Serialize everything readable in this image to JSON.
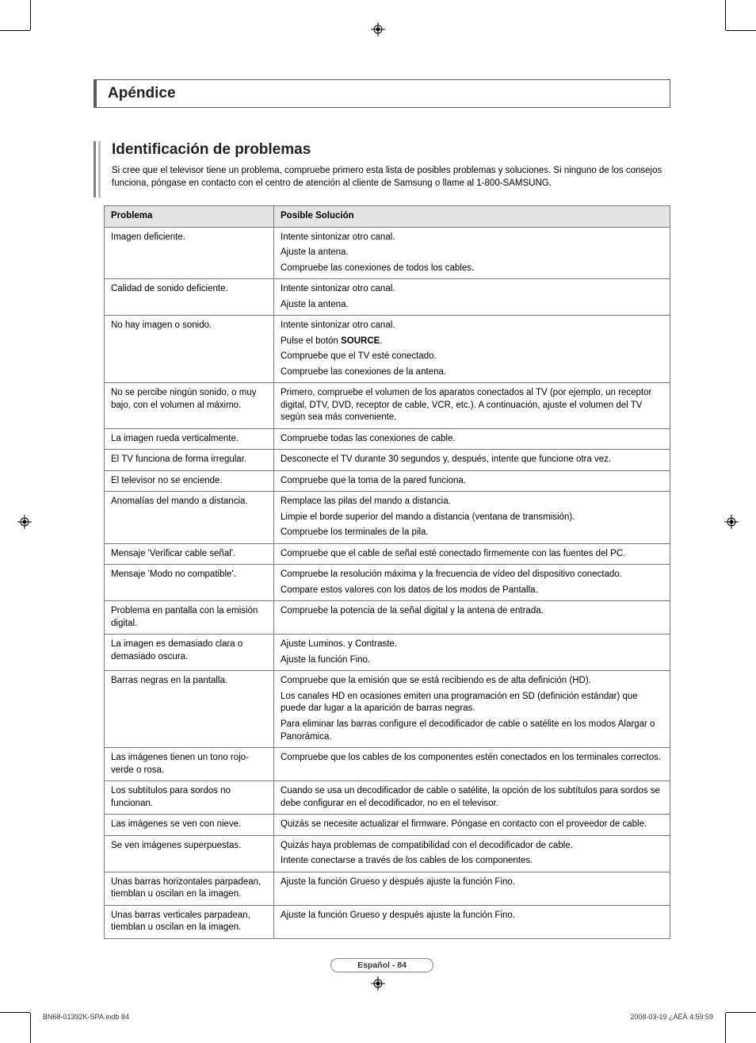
{
  "registration_glyph": "⊕",
  "section_title": "Apéndice",
  "subtitle": "Identificación de problemas",
  "intro": "Si cree que el televisor tiene un problema, compruebe primero esta lista de posibles problemas y soluciones. Si ninguno de los consejos funciona, póngase en contacto con el centro de atención al cliente de Samsung o llame al 1-800-SAMSUNG.",
  "col_problem": "Problema",
  "col_solution": "Posible Solución",
  "rows": [
    {
      "p": "Imagen deficiente.",
      "s": [
        "Intente sintonizar otro canal.",
        "Ajuste la antena.",
        "Compruebe las conexiones de todos los cables."
      ]
    },
    {
      "p": "Calidad de sonido deficiente.",
      "s": [
        "Intente sintonizar otro canal.",
        "Ajuste la antena."
      ]
    },
    {
      "p": "No hay imagen o sonido.",
      "s": [
        "Intente sintonizar otro canal.",
        "Pulse el botón <b>SOURCE</b>.",
        "Compruebe que el TV esté conectado.",
        "Compruebe las conexiones de la antena."
      ]
    },
    {
      "p": "No se percibe ningún sonido, o muy bajo, con el volumen al máximo.",
      "s": [
        "Primero, compruebe el volumen de los aparatos conectados al TV (por ejemplo, un receptor digital, DTV, DVD, receptor de cable, VCR, etc.). A continuación, ajuste el volumen del TV según sea más conveniente."
      ]
    },
    {
      "p": "La imagen rueda verticalmente.",
      "s": [
        "Compruebe todas las conexiones de cable."
      ]
    },
    {
      "p": "El TV funciona de forma irregular.",
      "s": [
        "Desconecte el TV durante 30 segundos y, después, intente que funcione otra vez."
      ]
    },
    {
      "p": "El televisor no se enciende.",
      "s": [
        "Compruebe que la toma de la pared funciona."
      ]
    },
    {
      "p": "Anomalías del mando a distancia.",
      "s": [
        "Remplace las pilas del mando a distancia.",
        "Limpie el borde superior del mando a distancia (ventana de transmisión).",
        "Compruebe los terminales de la pila."
      ]
    },
    {
      "p": "Mensaje 'Verificar cable señal'.",
      "s": [
        "Compruebe que el cable de señal esté conectado firmemente con las fuentes del PC."
      ]
    },
    {
      "p": "Mensaje 'Modo no compatible'.",
      "s": [
        "Compruebe la resolución máxima y la frecuencia de vídeo del dispositivo conectado.",
        "Compare estos valores con los datos de los modos de Pantalla."
      ]
    },
    {
      "p": "Problema en pantalla con la emisión digital.",
      "s": [
        "Compruebe la potencia de la señal digital y la antena de entrada."
      ]
    },
    {
      "p": "La imagen es demasiado clara o demasiado oscura.",
      "s": [
        "Ajuste Luminos. y Contraste.",
        "Ajuste la función Fino."
      ]
    },
    {
      "p": "Barras negras en la pantalla.",
      "s": [
        "Compruebe que la emisión que se está recibiendo es de alta definición (HD).",
        "Los canales HD en ocasiones emiten una programación en SD (definición estándar) que puede dar lugar a la aparición de barras negras.",
        "Para eliminar las barras configure el decodificador de cable o satélite en los modos Alargar o Panorámica."
      ]
    },
    {
      "p": "Las imágenes tienen un tono rojo-verde o rosa.",
      "s": [
        "Compruebe que los cables de los componentes estén conectados en los terminales correctos."
      ]
    },
    {
      "p": "Los subtítulos para sordos no funcionan.",
      "s": [
        "Cuando se usa un decodificador de cable o satélite, la opción de los subtítulos para sordos se debe configurar en el decodificador, no en el televisor."
      ]
    },
    {
      "p": "Las imágenes se ven con nieve.",
      "s": [
        "Quizás se necesite actualizar el firmware. Póngase en contacto con el proveedor de cable."
      ]
    },
    {
      "p": "Se ven imágenes superpuestas.",
      "s": [
        "Quizás haya problemas de compatibilidad con el decodificador de cable.",
        "Intente conectarse a través de los cables de los componentes."
      ]
    },
    {
      "p": "Unas barras horizontales parpadean, tiemblan u oscilan en la imagen.",
      "s": [
        "Ajuste la función Grueso y después ajuste la función Fino."
      ]
    },
    {
      "p": "Unas barras verticales parpadean, tiemblan u oscilan en la imagen.",
      "s": [
        "Ajuste la función Grueso y después ajuste la función Fino."
      ]
    }
  ],
  "page_badge": "Español - 84",
  "footer_left": "BN68-01392K-SPA.indb   84",
  "footer_right": "2008-03-19   ¿ÀÈÄ 4:59:59"
}
